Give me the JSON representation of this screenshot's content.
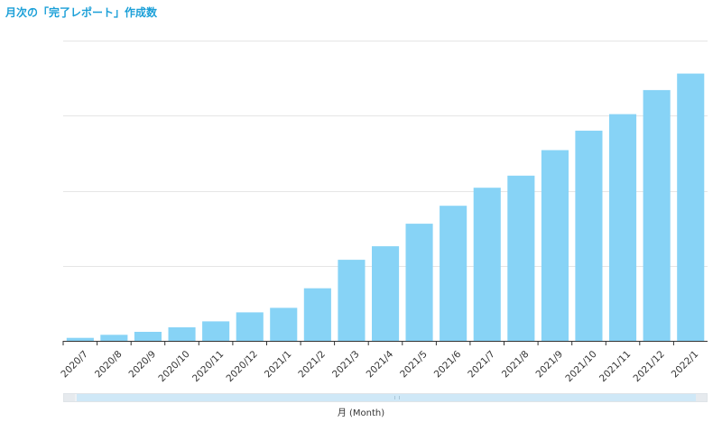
{
  "title": "月次の「完了レポート」作成数",
  "colors": {
    "bar": "#87d3f6",
    "title": "#1ca0d8",
    "grid": "#e6e6e6",
    "axis": "#333333"
  },
  "chart_data": {
    "type": "bar",
    "title": "月次の「完了レポート」作成数",
    "xlabel": "月 (Month)",
    "ylabel": "",
    "categories": [
      "2020/7",
      "2020/8",
      "2020/9",
      "2020/10",
      "2020/11",
      "2020/12",
      "2021/1",
      "2021/2",
      "2021/3",
      "2021/4",
      "2021/5",
      "2021/6",
      "2021/7",
      "2021/8",
      "2021/9",
      "2021/10",
      "2021/11",
      "2021/12",
      "2022/1"
    ],
    "values": [
      1,
      2,
      3,
      4.5,
      6.5,
      9.5,
      11,
      17.5,
      27,
      31.5,
      39,
      45,
      51,
      55,
      63.5,
      70,
      75.5,
      83.5,
      89
    ],
    "ylim": [
      0,
      100
    ],
    "grid": true,
    "y_tick_labels_shown": false
  },
  "scrollbar": {
    "position": "bottom"
  }
}
